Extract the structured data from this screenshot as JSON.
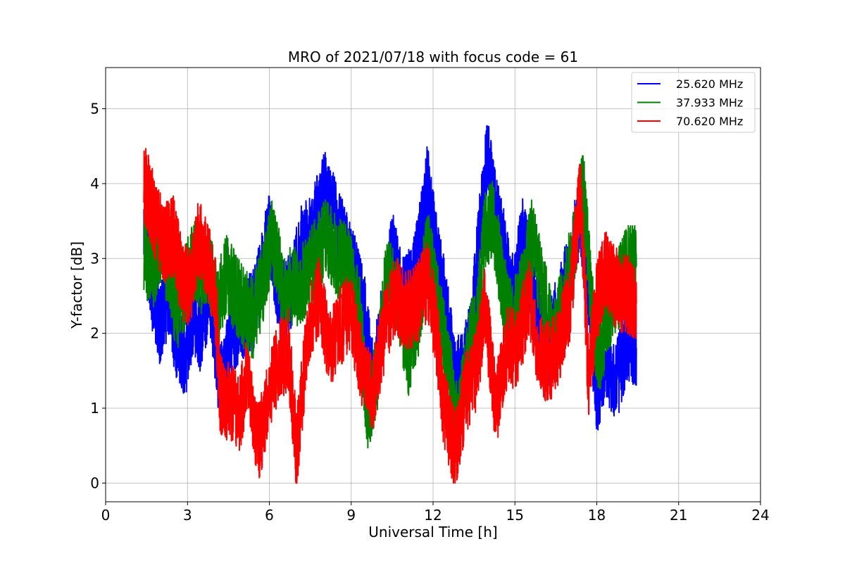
{
  "chart_data": {
    "type": "line",
    "title": "MRO of 2021/07/18 with focus code = 61",
    "xlabel": "Universal Time [h]",
    "ylabel": "Y-factor [dB]",
    "xlim": [
      0,
      24
    ],
    "ylim": [
      -0.25,
      5.55
    ],
    "xticks": [
      0,
      3,
      6,
      9,
      12,
      15,
      18,
      21,
      24
    ],
    "yticks": [
      0,
      1,
      2,
      3,
      4,
      5
    ],
    "grid": true,
    "legend_position": "top-right",
    "series": [
      {
        "name": "25.620 MHz",
        "color": "#0000ff",
        "points": [
          [
            1.4,
            3.4
          ],
          [
            1.7,
            2.6
          ],
          [
            2.0,
            2.1
          ],
          [
            2.3,
            2.5
          ],
          [
            2.6,
            1.9
          ],
          [
            2.9,
            1.6
          ],
          [
            3.2,
            2.2
          ],
          [
            3.5,
            2.0
          ],
          [
            3.8,
            2.6
          ],
          [
            4.2,
            1.3
          ],
          [
            4.6,
            1.9
          ],
          [
            5.0,
            2.2
          ],
          [
            5.4,
            2.3
          ],
          [
            5.7,
            2.8
          ],
          [
            6.0,
            3.4
          ],
          [
            6.4,
            2.4
          ],
          [
            6.8,
            2.6
          ],
          [
            7.2,
            3.2
          ],
          [
            7.6,
            3.4
          ],
          [
            8.0,
            3.9
          ],
          [
            8.4,
            3.6
          ],
          [
            8.8,
            3.1
          ],
          [
            9.2,
            2.7
          ],
          [
            9.5,
            2.2
          ],
          [
            9.8,
            1.3
          ],
          [
            10.2,
            2.3
          ],
          [
            10.5,
            3.1
          ],
          [
            10.9,
            2.5
          ],
          [
            11.2,
            2.6
          ],
          [
            11.5,
            3.2
          ],
          [
            11.8,
            4.0
          ],
          [
            12.1,
            3.1
          ],
          [
            12.4,
            2.5
          ],
          [
            12.8,
            1.4
          ],
          [
            13.1,
            1.5
          ],
          [
            13.4,
            2.0
          ],
          [
            13.7,
            3.3
          ],
          [
            14.0,
            4.4
          ],
          [
            14.3,
            3.6
          ],
          [
            14.6,
            3.1
          ],
          [
            14.9,
            2.5
          ],
          [
            15.3,
            3.3
          ],
          [
            15.6,
            2.7
          ],
          [
            15.9,
            2.1
          ],
          [
            16.2,
            1.8
          ],
          [
            16.6,
            2.3
          ],
          [
            17.0,
            2.9
          ],
          [
            17.4,
            3.6
          ],
          [
            17.7,
            2.6
          ],
          [
            18.0,
            1.1
          ],
          [
            18.3,
            1.7
          ],
          [
            18.7,
            1.3
          ],
          [
            19.1,
            1.9
          ],
          [
            19.45,
            1.8
          ]
        ]
      },
      {
        "name": "37.933 MHz",
        "color": "#008000",
        "points": [
          [
            1.4,
            3.1
          ],
          [
            1.7,
            2.8
          ],
          [
            2.0,
            3.2
          ],
          [
            2.3,
            2.9
          ],
          [
            2.6,
            2.3
          ],
          [
            2.9,
            2.6
          ],
          [
            3.2,
            3.0
          ],
          [
            3.5,
            2.8
          ],
          [
            3.8,
            2.9
          ],
          [
            4.1,
            2.3
          ],
          [
            4.4,
            2.8
          ],
          [
            4.8,
            2.5
          ],
          [
            5.1,
            2.3
          ],
          [
            5.4,
            2.2
          ],
          [
            5.8,
            2.7
          ],
          [
            6.1,
            3.3
          ],
          [
            6.5,
            2.6
          ],
          [
            6.9,
            2.6
          ],
          [
            7.3,
            2.7
          ],
          [
            7.7,
            3.0
          ],
          [
            8.1,
            3.3
          ],
          [
            8.5,
            3.0
          ],
          [
            8.9,
            2.9
          ],
          [
            9.3,
            2.3
          ],
          [
            9.6,
            0.9
          ],
          [
            10.0,
            1.6
          ],
          [
            10.3,
            2.8
          ],
          [
            10.7,
            2.5
          ],
          [
            11.1,
            1.7
          ],
          [
            11.5,
            2.3
          ],
          [
            11.8,
            3.2
          ],
          [
            12.2,
            2.3
          ],
          [
            12.6,
            1.5
          ],
          [
            12.9,
            0.7
          ],
          [
            13.3,
            1.8
          ],
          [
            13.6,
            2.1
          ],
          [
            13.9,
            3.4
          ],
          [
            14.2,
            3.5
          ],
          [
            14.6,
            2.5
          ],
          [
            14.9,
            2.1
          ],
          [
            15.3,
            2.6
          ],
          [
            15.6,
            3.3
          ],
          [
            16.0,
            2.6
          ],
          [
            16.4,
            1.9
          ],
          [
            16.8,
            2.5
          ],
          [
            17.1,
            3.0
          ],
          [
            17.5,
            4.0
          ],
          [
            17.8,
            2.4
          ],
          [
            18.1,
            1.6
          ],
          [
            18.4,
            2.3
          ],
          [
            18.8,
            2.6
          ],
          [
            19.1,
            2.9
          ],
          [
            19.45,
            2.9
          ]
        ]
      },
      {
        "name": "70.620 MHz",
        "color": "#ff0000",
        "points": [
          [
            1.4,
            4.0
          ],
          [
            1.6,
            3.8
          ],
          [
            1.9,
            3.4
          ],
          [
            2.2,
            3.2
          ],
          [
            2.5,
            3.3
          ],
          [
            2.8,
            2.7
          ],
          [
            3.1,
            2.6
          ],
          [
            3.4,
            3.3
          ],
          [
            3.7,
            3.0
          ],
          [
            4.0,
            2.6
          ],
          [
            4.2,
            1.2
          ],
          [
            4.5,
            1.1
          ],
          [
            4.9,
            0.9
          ],
          [
            5.2,
            1.5
          ],
          [
            5.6,
            0.5
          ],
          [
            5.9,
            1.0
          ],
          [
            6.3,
            1.6
          ],
          [
            6.7,
            1.8
          ],
          [
            7.0,
            0.4
          ],
          [
            7.4,
            2.0
          ],
          [
            7.8,
            2.5
          ],
          [
            8.2,
            1.8
          ],
          [
            8.6,
            2.1
          ],
          [
            9.0,
            2.3
          ],
          [
            9.4,
            1.5
          ],
          [
            9.8,
            1.2
          ],
          [
            10.2,
            2.0
          ],
          [
            10.6,
            2.5
          ],
          [
            11.0,
            2.3
          ],
          [
            11.4,
            2.4
          ],
          [
            11.8,
            2.7
          ],
          [
            12.1,
            2.1
          ],
          [
            12.4,
            1.0
          ],
          [
            12.8,
            0.4
          ],
          [
            13.2,
            1.2
          ],
          [
            13.6,
            1.5
          ],
          [
            13.9,
            2.4
          ],
          [
            14.3,
            1.0
          ],
          [
            14.7,
            1.8
          ],
          [
            15.1,
            1.8
          ],
          [
            15.5,
            2.5
          ],
          [
            15.9,
            1.7
          ],
          [
            16.2,
            1.6
          ],
          [
            16.6,
            1.8
          ],
          [
            17.0,
            2.4
          ],
          [
            17.4,
            3.9
          ],
          [
            17.7,
            1.4
          ],
          [
            18.0,
            2.4
          ],
          [
            18.3,
            2.9
          ],
          [
            18.7,
            2.6
          ],
          [
            19.1,
            2.5
          ],
          [
            19.45,
            2.4
          ]
        ]
      }
    ]
  }
}
